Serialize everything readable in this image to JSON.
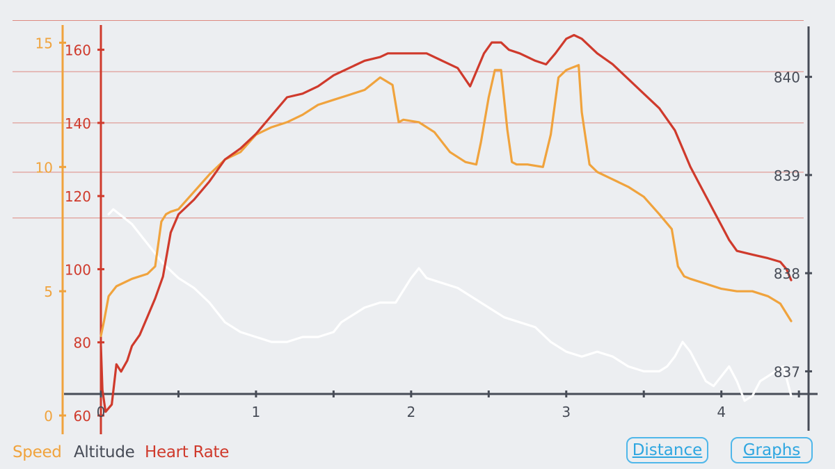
{
  "colors": {
    "speed": "#f0a33d",
    "altitude": "#ffffff",
    "heart_rate": "#cf3a2c",
    "axis_dark": "#474c57",
    "grid": "#dd8880",
    "button": "#4fb7ea",
    "background": "#eceef1"
  },
  "legend": {
    "speed": "Speed",
    "altitude": "Altitude",
    "heart_rate": "Heart Rate"
  },
  "buttons": {
    "distance": "Distance",
    "graphs": "Graphs"
  },
  "chart_data": {
    "type": "line",
    "x_ticks": [
      "0",
      "1",
      "2",
      "3",
      "4"
    ],
    "x_range": [
      0,
      4.45
    ],
    "axes": {
      "speed": {
        "ticks": [
          "0",
          "5",
          "10",
          "15"
        ],
        "range": [
          0,
          15.6
        ]
      },
      "heart_rate": {
        "ticks": [
          "60",
          "80",
          "100",
          "120",
          "140",
          "160"
        ],
        "range": [
          60,
          166
        ]
      },
      "altitude": {
        "ticks": [
          "837",
          "838",
          "839",
          "840"
        ],
        "range": [
          836.55,
          840.5
        ]
      }
    },
    "grid_heart_rate_levels": [
      114,
      126.5,
      140,
      154,
      168
    ],
    "series": [
      {
        "name": "Speed",
        "axis": "speed",
        "x": [
          0,
          0.02,
          0.05,
          0.1,
          0.2,
          0.3,
          0.35,
          0.39,
          0.42,
          0.45,
          0.5,
          0.6,
          0.7,
          0.8,
          0.9,
          1.0,
          1.1,
          1.2,
          1.3,
          1.4,
          1.5,
          1.6,
          1.7,
          1.8,
          1.88,
          1.92,
          1.95,
          2.05,
          2.15,
          2.25,
          2.35,
          2.42,
          2.45,
          2.5,
          2.54,
          2.58,
          2.62,
          2.65,
          2.68,
          2.7,
          2.75,
          2.85,
          2.9,
          2.95,
          3.0,
          3.04,
          3.08,
          3.1,
          3.15,
          3.2,
          3.3,
          3.4,
          3.5,
          3.6,
          3.68,
          3.72,
          3.76,
          3.8,
          3.9,
          4.0,
          4.1,
          4.2,
          4.3,
          4.38,
          4.45
        ],
        "values": [
          3.2,
          3.8,
          4.8,
          5.2,
          5.5,
          5.7,
          6.0,
          7.8,
          8.1,
          8.2,
          8.3,
          9.0,
          9.7,
          10.3,
          10.6,
          11.3,
          11.6,
          11.8,
          12.1,
          12.5,
          12.7,
          12.9,
          13.1,
          13.6,
          13.3,
          11.8,
          11.9,
          11.8,
          11.4,
          10.6,
          10.2,
          10.1,
          11.0,
          12.8,
          13.9,
          13.9,
          11.5,
          10.2,
          10.1,
          10.1,
          10.1,
          10.0,
          11.3,
          13.6,
          13.9,
          14.0,
          14.1,
          12.2,
          10.1,
          9.8,
          9.5,
          9.2,
          8.8,
          8.1,
          7.5,
          6.0,
          5.6,
          5.5,
          5.3,
          5.1,
          5.0,
          5.0,
          4.8,
          4.5,
          3.8
        ]
      },
      {
        "name": "Heart Rate",
        "axis": "heart_rate",
        "x": [
          0,
          0.01,
          0.03,
          0.07,
          0.1,
          0.13,
          0.17,
          0.2,
          0.25,
          0.3,
          0.35,
          0.4,
          0.45,
          0.5,
          0.6,
          0.7,
          0.8,
          0.9,
          1.0,
          1.1,
          1.2,
          1.3,
          1.4,
          1.5,
          1.6,
          1.7,
          1.8,
          1.85,
          1.9,
          2.0,
          2.1,
          2.2,
          2.3,
          2.38,
          2.43,
          2.47,
          2.52,
          2.58,
          2.63,
          2.7,
          2.8,
          2.87,
          2.93,
          3.0,
          3.05,
          3.1,
          3.15,
          3.2,
          3.3,
          3.4,
          3.5,
          3.6,
          3.7,
          3.75,
          3.8,
          3.85,
          3.9,
          3.95,
          4.0,
          4.05,
          4.1,
          4.2,
          4.3,
          4.38,
          4.42,
          4.45
        ],
        "values": [
          79,
          67,
          61,
          63,
          74,
          72,
          75,
          79,
          82,
          87,
          92,
          98,
          110,
          115,
          119,
          124,
          130,
          133,
          137,
          142,
          147,
          148,
          150,
          153,
          155,
          157,
          158,
          159,
          159,
          159,
          159,
          157,
          155,
          150,
          155,
          159,
          162,
          162,
          160,
          159,
          157,
          156,
          159,
          163,
          164,
          163,
          161,
          159,
          156,
          152,
          148,
          144,
          138,
          133,
          128,
          124,
          120,
          116,
          112,
          108,
          105,
          104,
          103,
          102,
          100,
          97
        ]
      },
      {
        "name": "Altitude",
        "axis": "altitude",
        "x": [
          0.05,
          0.08,
          0.12,
          0.2,
          0.3,
          0.4,
          0.5,
          0.6,
          0.7,
          0.8,
          0.9,
          1.0,
          1.1,
          1.2,
          1.3,
          1.4,
          1.5,
          1.55,
          1.6,
          1.7,
          1.8,
          1.9,
          2.0,
          2.05,
          2.1,
          2.2,
          2.3,
          2.4,
          2.5,
          2.6,
          2.7,
          2.8,
          2.9,
          3.0,
          3.1,
          3.2,
          3.3,
          3.4,
          3.5,
          3.6,
          3.65,
          3.7,
          3.75,
          3.8,
          3.85,
          3.9,
          3.95,
          4.0,
          4.05,
          4.1,
          4.15,
          4.2,
          4.25,
          4.3,
          4.35,
          4.4,
          4.45
        ],
        "values": [
          838.6,
          838.65,
          838.6,
          838.5,
          838.3,
          838.1,
          837.95,
          837.85,
          837.7,
          837.5,
          837.4,
          837.35,
          837.3,
          837.3,
          837.35,
          837.35,
          837.4,
          837.5,
          837.55,
          837.65,
          837.7,
          837.7,
          837.95,
          838.05,
          837.95,
          837.9,
          837.85,
          837.75,
          837.65,
          837.55,
          837.5,
          837.45,
          837.3,
          837.2,
          837.15,
          837.2,
          837.15,
          837.05,
          837.0,
          837.0,
          837.05,
          837.15,
          837.3,
          837.2,
          837.05,
          836.9,
          836.85,
          836.95,
          837.05,
          836.9,
          836.7,
          836.75,
          836.9,
          836.95,
          837.0,
          837.05,
          836.75
        ]
      }
    ]
  }
}
